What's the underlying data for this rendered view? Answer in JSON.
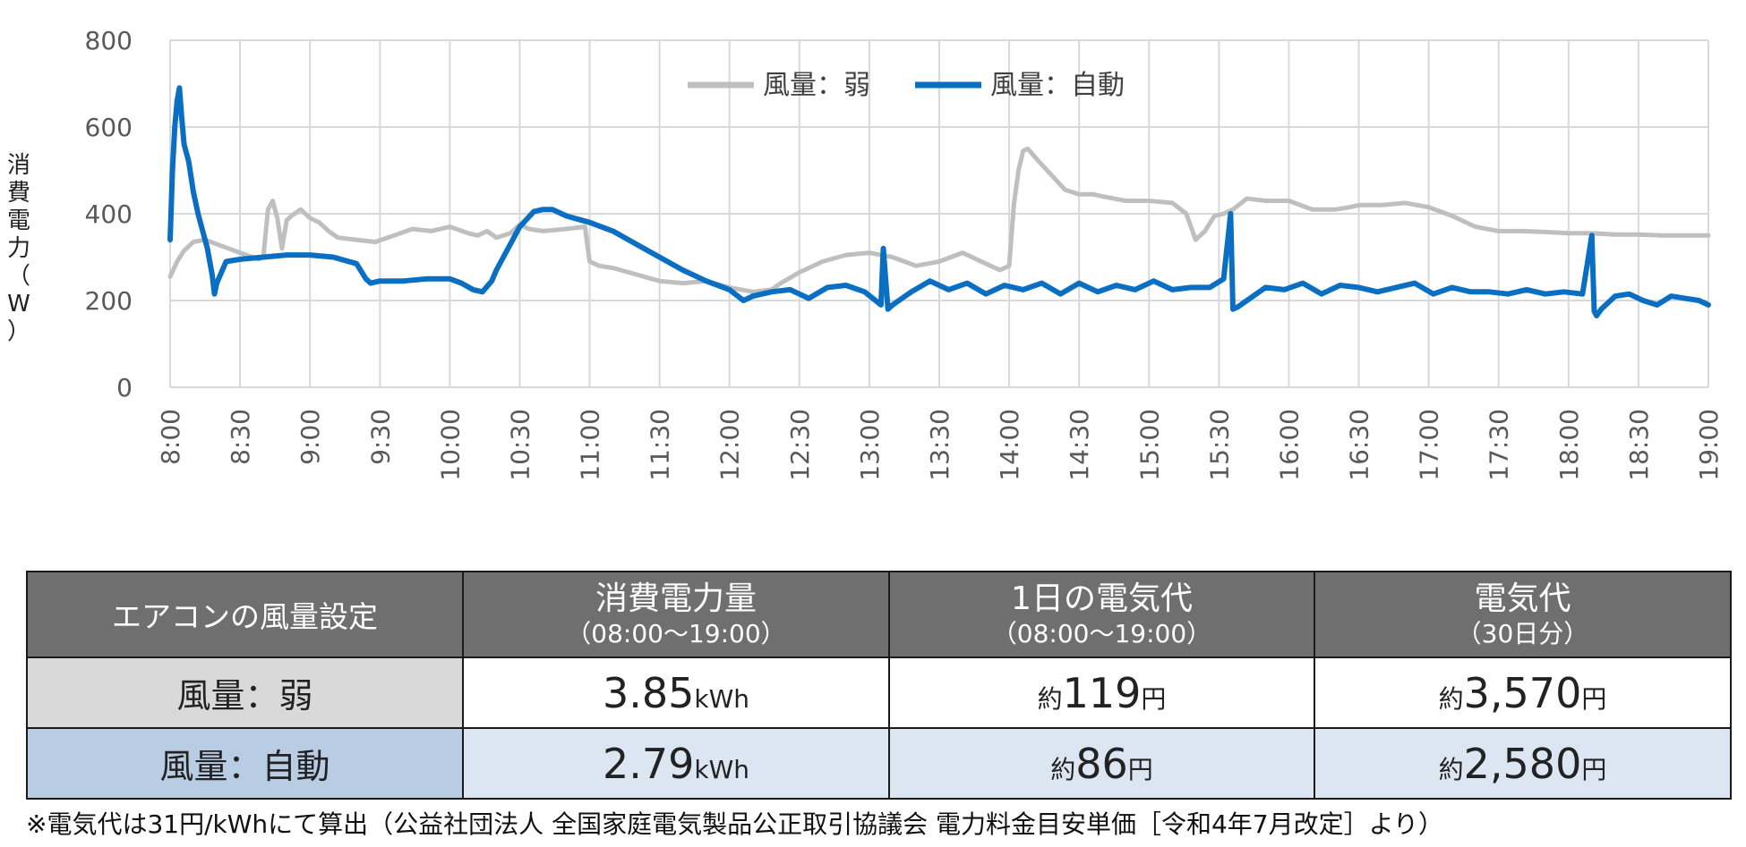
{
  "chart_data": {
    "type": "line",
    "ylabel": "消費電力（W）",
    "ylabel_chars": [
      "消",
      "費",
      "電",
      "力",
      "（",
      "W",
      "）"
    ],
    "ylim": [
      0,
      800
    ],
    "y_ticks": [
      "0",
      "200",
      "400",
      "600",
      "800"
    ],
    "x_ticks": [
      "8:00",
      "8:30",
      "9:00",
      "9:30",
      "10:00",
      "10:30",
      "11:00",
      "11:30",
      "12:00",
      "12:30",
      "13:00",
      "13:30",
      "14:00",
      "14:30",
      "15:00",
      "15:30",
      "16:00",
      "16:30",
      "17:00",
      "17:30",
      "18:00",
      "18:30",
      "19:00"
    ],
    "x_unit": "minutes from 8:00",
    "grid": true,
    "legend_position": "top-center",
    "series": [
      {
        "name": "風量：弱",
        "color": "#bfbfbf",
        "x": [
          0,
          3,
          6,
          10,
          15,
          20,
          30,
          38,
          40,
          42,
          44,
          46,
          48,
          50,
          52,
          56,
          60,
          64,
          68,
          72,
          80,
          88,
          96,
          104,
          112,
          120,
          128,
          132,
          136,
          140,
          146,
          150,
          154,
          160,
          170,
          178,
          180,
          184,
          190,
          200,
          210,
          220,
          230,
          240,
          250,
          258,
          262,
          270,
          280,
          290,
          300,
          310,
          320,
          330,
          340,
          350,
          356,
          360,
          362,
          364,
          366,
          368,
          372,
          378,
          384,
          390,
          396,
          400,
          410,
          420,
          430,
          436,
          440,
          444,
          448,
          452,
          456,
          462,
          470,
          480,
          490,
          500,
          506,
          510,
          520,
          530,
          540,
          550,
          560,
          570,
          580,
          590,
          600,
          610,
          620,
          630,
          640,
          650,
          660
        ],
        "values": [
          255,
          290,
          315,
          335,
          340,
          330,
          310,
          295,
          300,
          410,
          430,
          390,
          320,
          385,
          395,
          410,
          390,
          380,
          360,
          345,
          340,
          335,
          350,
          365,
          360,
          370,
          355,
          350,
          360,
          345,
          355,
          375,
          365,
          360,
          365,
          370,
          290,
          280,
          275,
          260,
          245,
          240,
          245,
          230,
          220,
          225,
          240,
          265,
          290,
          305,
          310,
          300,
          280,
          290,
          310,
          285,
          270,
          280,
          420,
          500,
          545,
          550,
          525,
          490,
          455,
          445,
          445,
          440,
          430,
          430,
          425,
          400,
          340,
          360,
          395,
          400,
          410,
          435,
          430,
          430,
          410,
          410,
          415,
          420,
          420,
          425,
          415,
          395,
          370,
          360,
          360,
          358,
          355,
          355,
          352,
          352,
          350,
          350,
          350
        ]
      },
      {
        "name": "風量：自動",
        "color": "#0a6fc2",
        "x": [
          0,
          1,
          2,
          3,
          4,
          5,
          6,
          7,
          8,
          10,
          12,
          14,
          16,
          18,
          19,
          20,
          24,
          30,
          40,
          50,
          60,
          70,
          80,
          84,
          86,
          90,
          100,
          110,
          120,
          125,
          130,
          134,
          138,
          140,
          146,
          150,
          156,
          160,
          164,
          170,
          180,
          190,
          200,
          210,
          220,
          230,
          240,
          246,
          250,
          258,
          266,
          274,
          282,
          290,
          298,
          305,
          306,
          308,
          310,
          318,
          326,
          334,
          342,
          350,
          358,
          366,
          374,
          382,
          390,
          398,
          406,
          414,
          422,
          430,
          438,
          446,
          452,
          455,
          456,
          458,
          462,
          470,
          478,
          486,
          494,
          502,
          510,
          518,
          526,
          534,
          542,
          550,
          558,
          566,
          574,
          582,
          590,
          598,
          606,
          610,
          611,
          612,
          614,
          620,
          626,
          632,
          638,
          644,
          650,
          656,
          660
        ],
        "values": [
          340,
          500,
          600,
          660,
          690,
          620,
          560,
          540,
          520,
          450,
          400,
          360,
          320,
          260,
          215,
          240,
          290,
          295,
          300,
          305,
          305,
          300,
          285,
          250,
          240,
          245,
          245,
          250,
          250,
          240,
          225,
          220,
          245,
          270,
          330,
          370,
          405,
          410,
          410,
          395,
          380,
          360,
          330,
          300,
          270,
          245,
          225,
          200,
          210,
          220,
          225,
          205,
          230,
          235,
          220,
          190,
          320,
          180,
          190,
          220,
          245,
          225,
          240,
          215,
          235,
          225,
          240,
          215,
          240,
          220,
          235,
          225,
          245,
          225,
          230,
          230,
          250,
          400,
          180,
          185,
          200,
          230,
          225,
          240,
          215,
          235,
          230,
          220,
          230,
          240,
          215,
          230,
          220,
          220,
          215,
          225,
          215,
          220,
          215,
          350,
          175,
          165,
          180,
          210,
          215,
          200,
          190,
          210,
          205,
          200,
          190
        ]
      }
    ]
  },
  "table": {
    "headers": [
      {
        "main": "エアコンの風量設定",
        "sub": ""
      },
      {
        "main": "消費電力量",
        "sub": "（08:00～19:00）"
      },
      {
        "main": "1日の電気代",
        "sub": "（08:00～19:00）"
      },
      {
        "main": "電気代",
        "sub": "（30日分）"
      }
    ],
    "rows": [
      {
        "label": "風量：弱",
        "power": {
          "value": "3.85",
          "unit": "kWh"
        },
        "daily": {
          "prefix": "約",
          "value": "119",
          "unit": "円"
        },
        "monthly": {
          "prefix": "約",
          "value": "3,570",
          "unit": "円"
        }
      },
      {
        "label": "風量：自動",
        "power": {
          "value": "2.79",
          "unit": "kWh"
        },
        "daily": {
          "prefix": "約",
          "value": "86",
          "unit": "円"
        },
        "monthly": {
          "prefix": "約",
          "value": "2,580",
          "unit": "円"
        }
      }
    ]
  },
  "footnote": "※電気代は31円/kWhにて算出（公益社団法人 全国家庭電気製品公正取引協議会 電力料金目安単価［令和4年7月改定］より）"
}
